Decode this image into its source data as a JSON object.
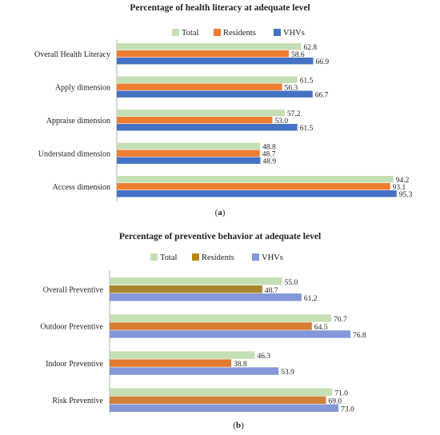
{
  "chart_data": [
    {
      "type": "bar",
      "orientation": "horizontal",
      "title": "Percentage of health literacy at adequate level",
      "caption_letter": "a",
      "categories": [
        "Overall Health Literacy",
        "Apply dimension",
        "Appraise dimension",
        "Understand dimension",
        "Access dimension"
      ],
      "series": [
        {
          "name": "Total",
          "color": "#c5dfb4",
          "values": [
            62.8,
            61.5,
            57.2,
            48.8,
            94.2
          ]
        },
        {
          "name": "Residents",
          "color": "#ed7d31",
          "values": [
            58.6,
            56.3,
            53.0,
            48.7,
            93.1
          ]
        },
        {
          "name": "VHVs",
          "color": "#4472c4",
          "values": [
            66.9,
            66.7,
            61.5,
            48.9,
            95.3
          ]
        }
      ],
      "xlim": [
        0,
        100
      ],
      "grid": false,
      "legend_position": "top",
      "axis_line_color": "#b0b0b0"
    },
    {
      "type": "bar",
      "orientation": "horizontal",
      "title": "Percentage of preventive behavior at adequate level",
      "caption_letter": "b",
      "categories": [
        "Overall Preventive",
        "Outdoor Preventive",
        "Indoor Preventive",
        "Risk Preventive"
      ],
      "series": [
        {
          "name": "Total",
          "color": "#c5dfb4",
          "values": [
            55.0,
            70.7,
            46.3,
            71.0
          ]
        },
        {
          "name": "Residents",
          "color": "#b8860b",
          "values": [
            48.7,
            64.5,
            38.8,
            69.0
          ],
          "alt_colors": [
            "#a9852e",
            "#d87c2f",
            "#e07a2e",
            "#d2813a"
          ]
        },
        {
          "name": "VHVs",
          "color": "#8497d8",
          "values": [
            61.2,
            76.8,
            53.9,
            73.0
          ]
        }
      ],
      "xlim": [
        0,
        100
      ],
      "grid": false,
      "legend_position": "top",
      "axis_line_color": "#b0b0b0"
    }
  ]
}
